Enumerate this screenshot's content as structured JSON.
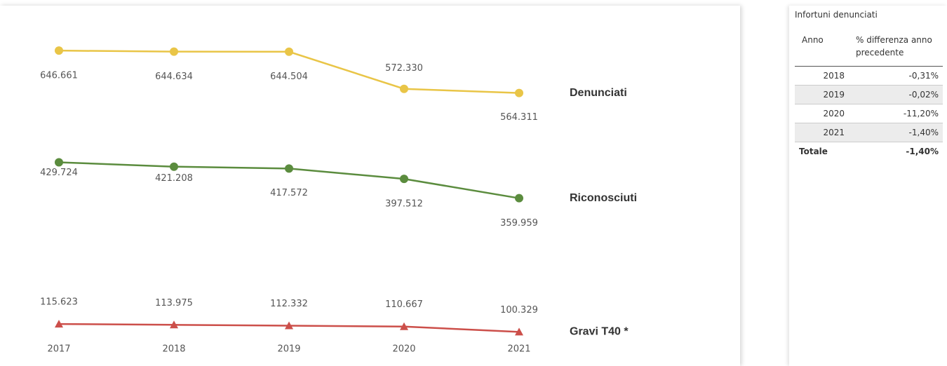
{
  "chart_data": {
    "type": "line",
    "categories": [
      "2017",
      "2018",
      "2019",
      "2020",
      "2021"
    ],
    "ylim": [
      0,
      700000
    ],
    "series": [
      {
        "name": "Denunciati",
        "color": "#e9c547",
        "marker": "circle",
        "values": [
          646661,
          644634,
          644504,
          572330,
          564311
        ],
        "value_labels": [
          "646.661",
          "644.634",
          "644.504",
          "572.330",
          "564.311"
        ]
      },
      {
        "name": "Riconosciuti",
        "color": "#5b8c3e",
        "marker": "circle",
        "values": [
          429724,
          421208,
          417572,
          397512,
          359959
        ],
        "value_labels": [
          "429.724",
          "421.208",
          "417.572",
          "397.512",
          "359.959"
        ]
      },
      {
        "name": "Gravi T40 *",
        "color": "#cc4f4a",
        "marker": "triangle",
        "values": [
          115623,
          113975,
          112332,
          110667,
          100329
        ],
        "value_labels": [
          "115.623",
          "113.975",
          "112.332",
          "110.667",
          "100.329"
        ]
      }
    ]
  },
  "table": {
    "title": "Infortuni denunciati",
    "headers": [
      "Anno",
      "% differenza anno precedente"
    ],
    "rows": [
      [
        "2018",
        "-0,31%"
      ],
      [
        "2019",
        "-0,02%"
      ],
      [
        "2020",
        "-11,20%"
      ],
      [
        "2021",
        "-1,40%"
      ]
    ],
    "total": [
      "Totale",
      "-1,40%"
    ]
  }
}
